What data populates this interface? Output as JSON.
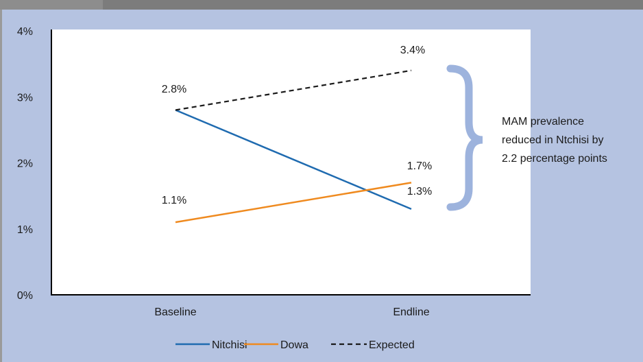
{
  "chart_data": {
    "type": "line",
    "categories": [
      "Baseline",
      "Endline"
    ],
    "series": [
      {
        "name": "Nitchisi",
        "values": [
          2.8,
          1.3
        ],
        "color": "#1f6bb0",
        "dash": false,
        "labels": [
          "2.8%",
          "1.3%"
        ]
      },
      {
        "name": "Dowa",
        "values": [
          1.1,
          1.7
        ],
        "color": "#ef8a1f",
        "dash": false,
        "labels": [
          "1.1%",
          "1.7%"
        ]
      },
      {
        "name": "Expected",
        "values": [
          2.8,
          3.4
        ],
        "color": "#1a1a1a",
        "dash": true,
        "labels": [
          "",
          "3.4%"
        ]
      }
    ],
    "y_ticks": [
      "0%",
      "1%",
      "2%",
      "3%",
      "4%"
    ],
    "ylim": [
      0,
      4
    ],
    "annotation": [
      "MAM prevalence",
      "reduced in Ntchisi by",
      "2.2 percentage points"
    ],
    "brace_color": "#9db3dd",
    "legend": "bottom",
    "grid": false
  }
}
